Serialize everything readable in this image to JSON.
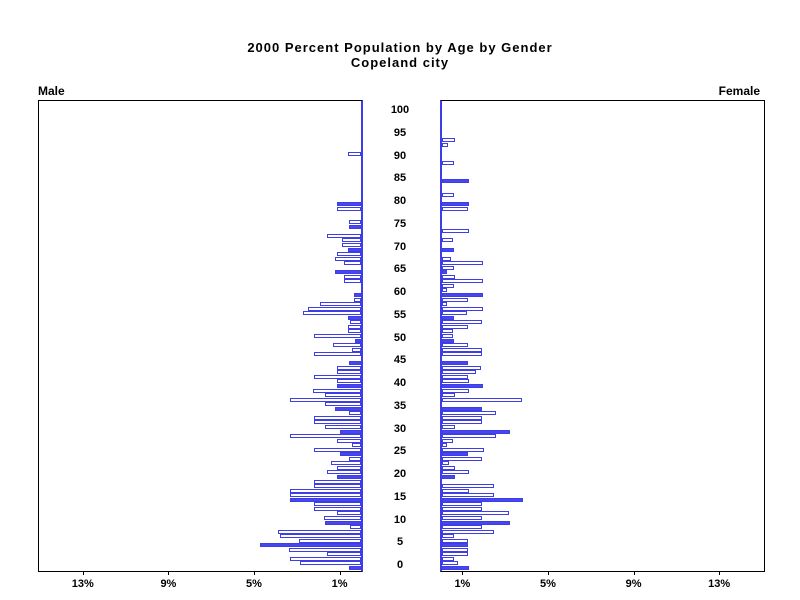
{
  "title_line1": "2000 Percent Population by Age by Gender",
  "title_line2": "Copeland city",
  "left_panel_label": "Male",
  "right_panel_label": "Female",
  "colors": {
    "bar_outline": "#3e3ee8",
    "bar_fill_solid": "#4747ed",
    "bar_fill_hollow": "#ffffff",
    "axis": "#000000",
    "text": "#000000",
    "background": "#ffffff"
  },
  "chart_data": {
    "type": "bar",
    "subtype": "population-pyramid",
    "title": "2000 Percent Population by Age by Gender",
    "subtitle": "Copeland city",
    "xlabel_unit": "%",
    "x_tick_values": [
      1,
      5,
      9,
      13
    ],
    "x_tick_labels": [
      "1%",
      "5%",
      "9%",
      "13%"
    ],
    "xlim_percent": [
      0,
      15
    ],
    "age_axis_ticks": [
      0,
      5,
      10,
      15,
      20,
      25,
      30,
      35,
      40,
      45,
      50,
      55,
      60,
      65,
      70,
      75,
      80,
      85,
      90,
      95,
      100
    ],
    "age_range": [
      0,
      100
    ],
    "solid_bar_rule": "ages divisible by 5 are solid filled, others hollow outline",
    "legend": "none",
    "grid": false,
    "series": [
      {
        "name": "Male",
        "direction": "left",
        "ages": "0-100 ascending, percent of population",
        "values": [
          0.55,
          2.85,
          3.3,
          1.6,
          3.35,
          4.7,
          2.9,
          3.8,
          3.9,
          0.5,
          1.7,
          1.75,
          1.1,
          2.2,
          2.2,
          3.3,
          3.3,
          3.3,
          2.2,
          2.2,
          1.1,
          1.6,
          1.1,
          1.4,
          0.55,
          1.0,
          2.2,
          0.4,
          1.1,
          3.3,
          1.0,
          1.7,
          2.2,
          2.2,
          0.55,
          1.2,
          1.7,
          3.3,
          1.7,
          2.25,
          1.1,
          1.1,
          2.2,
          1.1,
          1.1,
          0.55,
          0,
          2.2,
          0.4,
          1.3,
          0.3,
          2.2,
          0.6,
          0.6,
          0.5,
          0.6,
          2.7,
          2.5,
          1.9,
          0.35,
          0.35,
          0,
          0,
          0.8,
          0.8,
          1.2,
          0,
          0.8,
          1.2,
          1.1,
          0.6,
          0.9,
          0.9,
          1.6,
          0,
          0.55,
          0.55,
          0,
          0,
          1.1,
          1.1,
          0,
          0,
          0,
          0,
          0,
          0,
          0,
          0,
          0,
          0,
          0.6,
          0,
          0,
          0,
          0,
          0,
          0,
          0,
          0,
          0
        ]
      },
      {
        "name": "Female",
        "direction": "right",
        "ages": "0-100 ascending, percent of population",
        "values": [
          1.25,
          0.75,
          0.55,
          1.2,
          1.2,
          1.2,
          1.2,
          0.55,
          2.45,
          1.85,
          3.2,
          1.85,
          3.15,
          1.85,
          1.85,
          3.8,
          2.45,
          1.25,
          2.45,
          0,
          0.6,
          1.25,
          0.6,
          0.35,
          1.85,
          1.2,
          1.95,
          0.25,
          0.5,
          2.5,
          3.2,
          0.6,
          1.85,
          1.85,
          2.5,
          1.85,
          0,
          3.75,
          0.6,
          1.25,
          1.9,
          1.25,
          1.2,
          1.6,
          1.8,
          1.2,
          0,
          1.85,
          1.85,
          1.2,
          0.55,
          0.5,
          0.5,
          1.2,
          1.85,
          0.55,
          1.15,
          1.9,
          0.25,
          1.2,
          1.9,
          0.25,
          0.55,
          1.9,
          0.6,
          0.25,
          0.55,
          1.9,
          0.4,
          0,
          0.55,
          0,
          0.5,
          0,
          1.25,
          0,
          0,
          0,
          0,
          1.2,
          1.25,
          0,
          0.55,
          0,
          0,
          1.25,
          0,
          0,
          0,
          0.55,
          0,
          0,
          0,
          0.3,
          0.6,
          0,
          0,
          0,
          0,
          0,
          0
        ]
      }
    ]
  }
}
